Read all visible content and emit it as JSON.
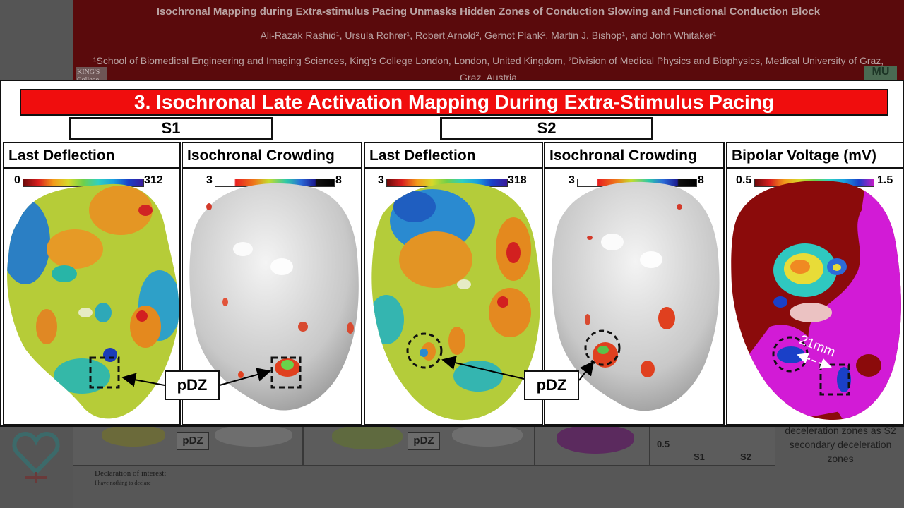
{
  "poster": {
    "title": "Isochronal Mapping during Extra-stimulus Pacing Unmasks Hidden Zones of Conduction Slowing and Functional Conduction Block",
    "authors": "Ali-Razak Rashid¹, Ursula Rohrer¹, Robert Arnold², Gernot Plank², Martin J. Bishop¹, and John Whitaker¹",
    "affiliations": "¹School of Biomedical Engineering and Imaging Sciences, King's College London, London, United Kingdom, ²Division of Medical Physics and Biophysics, Medical University of Graz, Graz, Austria",
    "logo_left": "KING'S College",
    "logo_right": "MU",
    "bottom_pdz_1": "pDZ",
    "bottom_pdz_2": "pDZ",
    "side_text": "deceleration zones as S2 secondary deceleration zones",
    "axis_value": "0.5",
    "axis_s1": "S1",
    "axis_s2": "S2",
    "declaration_title": "Declaration of interest:",
    "declaration_text": "I have nothing to declare"
  },
  "slide": {
    "banner": "3. Isochronal Late Activation Mapping During Extra-Stimulus Pacing",
    "s1_label": "S1",
    "s2_label": "S2",
    "panels": [
      {
        "title": "Last Deflection",
        "cb_min": "0",
        "cb_max": "312"
      },
      {
        "title": "Isochronal Crowding",
        "cb_min": "3",
        "cb_max": "8"
      },
      {
        "title": "Last Deflection",
        "cb_min": "3",
        "cb_max": "318"
      },
      {
        "title": "Isochronal Crowding",
        "cb_min": "3",
        "cb_max": "8"
      },
      {
        "title": "Bipolar Voltage (mV)",
        "cb_min": "0.5",
        "cb_max": "1.5"
      }
    ],
    "pdz_label_1": "pDZ",
    "pdz_label_2": "pDZ",
    "distance_label": "21mm"
  },
  "colors": {
    "banner": "#f00d0d",
    "poster_header": "#5a0a0c",
    "voltage_purple": "#d21bd6",
    "voltage_red": "#8b0b0b"
  }
}
